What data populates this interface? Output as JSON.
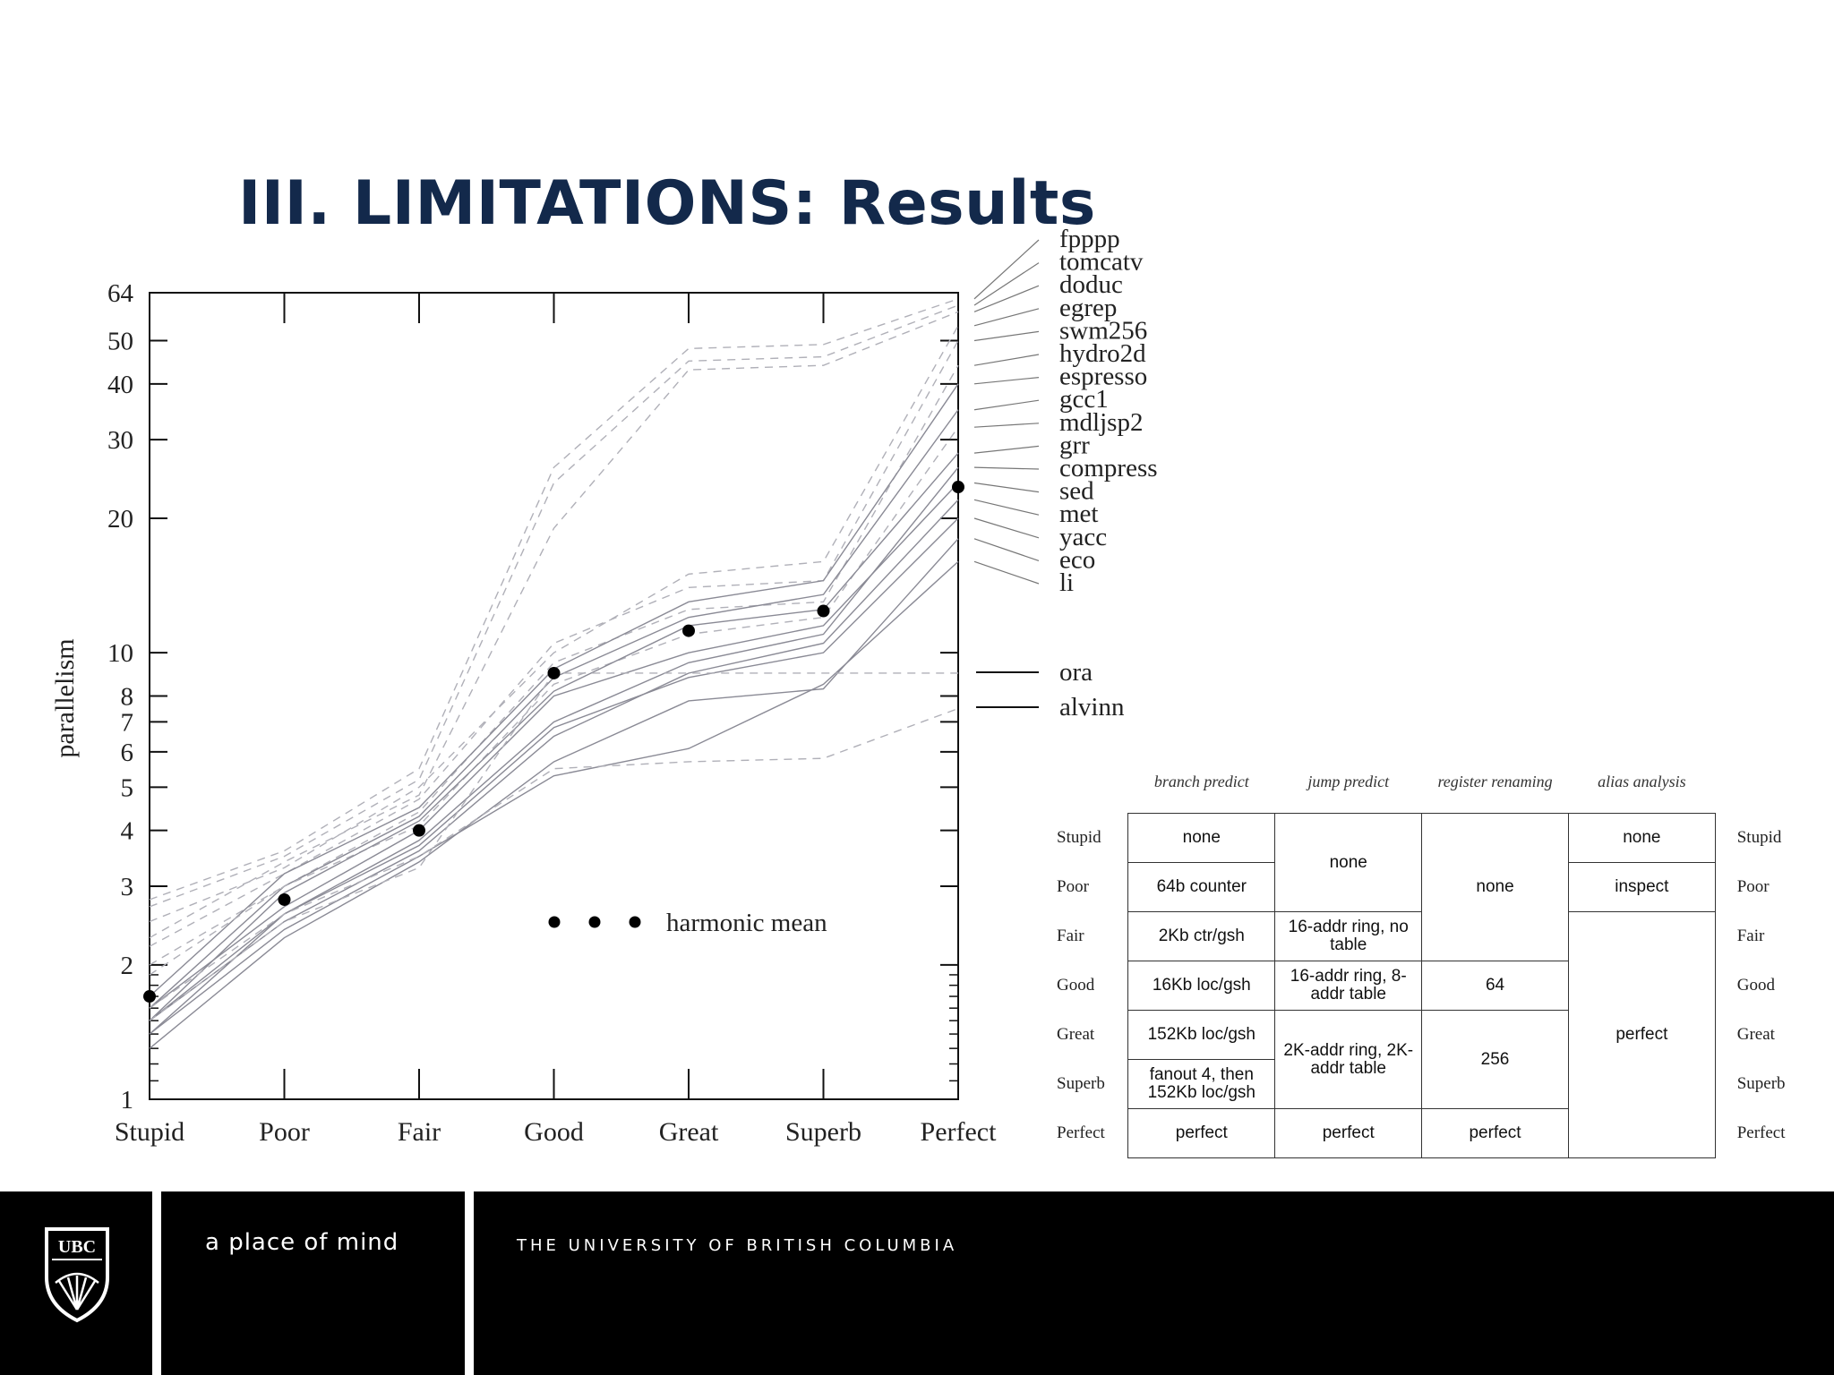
{
  "slide": {
    "title": "III. LIMITATIONS: Results"
  },
  "chart_data": {
    "type": "line",
    "ylabel": "parallelism",
    "yscale": "log",
    "ylim": [
      1,
      64
    ],
    "yticks": [
      1,
      2,
      3,
      4,
      5,
      6,
      7,
      8,
      10,
      20,
      30,
      40,
      50,
      64
    ],
    "categories": [
      "Stupid",
      "Poor",
      "Fair",
      "Good",
      "Great",
      "Superb",
      "Perfect"
    ],
    "annotation": "harmonic mean",
    "harmonic_mean": [
      1.7,
      2.8,
      4.0,
      9.0,
      11.2,
      12.4,
      23.5
    ],
    "series": [
      {
        "name": "fpppp",
        "style": "dashed",
        "values": [
          2.8,
          3.6,
          5.5,
          26,
          48,
          49,
          62
        ]
      },
      {
        "name": "tomcatv",
        "style": "dashed",
        "values": [
          2.7,
          3.5,
          5.2,
          24,
          45,
          46,
          60
        ]
      },
      {
        "name": "doduc",
        "style": "dashed",
        "values": [
          2.3,
          3.4,
          4.8,
          19,
          43,
          44,
          58
        ]
      },
      {
        "name": "egrep",
        "style": "dashed",
        "values": [
          2.5,
          3.3,
          5.0,
          10,
          15,
          16,
          54
        ]
      },
      {
        "name": "swm256",
        "style": "dashed",
        "values": [
          2.2,
          3.2,
          4.7,
          10.5,
          14,
          14.5,
          50
        ]
      },
      {
        "name": "hydro2d",
        "style": "dashed",
        "values": [
          2.0,
          3.0,
          4.4,
          9.5,
          12.5,
          13,
          44
        ]
      },
      {
        "name": "espresso",
        "style": "solid",
        "values": [
          1.7,
          3.2,
          4.5,
          9.2,
          13,
          14.5,
          40
        ]
      },
      {
        "name": "gcc1",
        "style": "solid",
        "values": [
          1.6,
          3.0,
          4.3,
          8.8,
          12,
          13.5,
          35
        ]
      },
      {
        "name": "mdljsp2",
        "style": "dashed",
        "values": [
          1.9,
          3.0,
          4.1,
          8.5,
          11,
          12,
          32
        ]
      },
      {
        "name": "grr",
        "style": "solid",
        "values": [
          1.5,
          2.9,
          4.2,
          8.2,
          11.5,
          12.5,
          28
        ]
      },
      {
        "name": "compress",
        "style": "solid",
        "values": [
          1.4,
          2.6,
          3.8,
          7.0,
          9.5,
          11,
          26
        ]
      },
      {
        "name": "sed",
        "style": "solid",
        "values": [
          1.6,
          2.7,
          4.0,
          8.0,
          10,
          11.5,
          24
        ]
      },
      {
        "name": "met",
        "style": "solid",
        "values": [
          1.5,
          2.5,
          3.6,
          6.5,
          9,
          10.5,
          22
        ]
      },
      {
        "name": "yacc",
        "style": "solid",
        "values": [
          1.5,
          2.6,
          3.7,
          6.8,
          8.8,
          10,
          20
        ]
      },
      {
        "name": "eco",
        "style": "solid",
        "values": [
          1.3,
          2.3,
          3.4,
          5.7,
          7.8,
          8.3,
          18
        ]
      },
      {
        "name": "li",
        "style": "solid",
        "values": [
          1.4,
          2.4,
          3.5,
          5.3,
          6.1,
          8.5,
          16
        ]
      },
      {
        "name": "ora",
        "style": "dashed",
        "values": [
          1.5,
          2.5,
          3.3,
          9.0,
          9.0,
          9.0,
          9.0
        ]
      },
      {
        "name": "alvinn",
        "style": "dashed",
        "values": [
          1.6,
          2.6,
          3.5,
          5.5,
          5.7,
          5.8,
          7.5
        ]
      }
    ]
  },
  "config_table": {
    "headers": [
      "branch predict",
      "jump predict",
      "register renaming",
      "alias analysis"
    ],
    "rows": [
      "Stupid",
      "Poor",
      "Fair",
      "Good",
      "Great",
      "Superb",
      "Perfect"
    ],
    "branch": [
      "none",
      "64b counter",
      "2Kb ctr/gsh",
      "16Kb loc/gsh",
      "152Kb loc/gsh",
      "fanout 4, then 152Kb loc/gsh",
      "perfect"
    ],
    "jump": {
      "j1": "none",
      "j2": "16-addr ring, no table",
      "j3": "16-addr ring, 8-addr table",
      "j4": "2K-addr ring, 2K-addr table",
      "j5": "perfect"
    },
    "rename": {
      "r1": "none",
      "r2": "64",
      "r3": "256",
      "r4": "perfect"
    },
    "alias": {
      "a1": "none",
      "a2": "inspect",
      "a3": "perfect"
    }
  },
  "footer": {
    "tagline": "a place of mind",
    "university": "THE UNIVERSITY OF BRITISH COLUMBIA",
    "logo_text": "UBC"
  }
}
